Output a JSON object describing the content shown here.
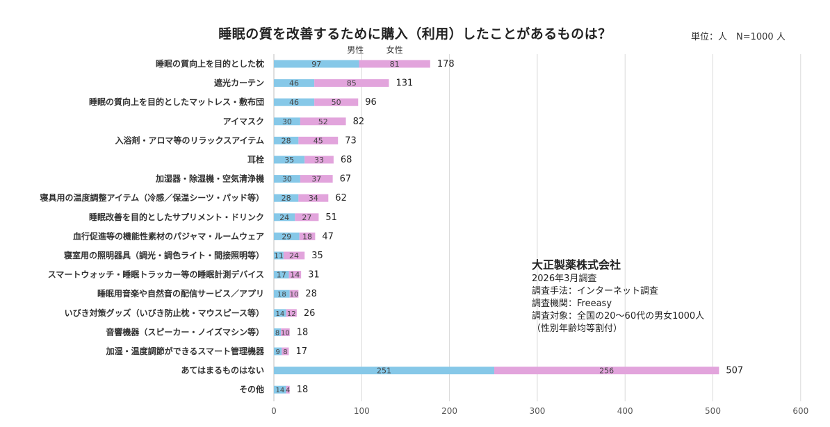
{
  "chart_data": {
    "type": "bar",
    "orientation": "horizontal",
    "stacked": true,
    "title": "睡眠の質を改善するために購入（利用）したことがあるものは？",
    "unit_label": "単位：人　N=1000 人",
    "xlim": [
      0,
      600
    ],
    "x_ticks": [
      "0",
      "100",
      "200",
      "300",
      "400",
      "500",
      "600"
    ],
    "grid": true,
    "legend": [
      "男性",
      "女性"
    ],
    "colors": {
      "male": "#86c8e8",
      "female": "#e2a4dc"
    },
    "categories": [
      "睡眠の質向上を目的とした枕",
      "遮光カーテン",
      "睡眠の質向上を目的としたマットレス・敷布団",
      "アイマスク",
      "入浴剤・アロマ等のリラックスアイテム",
      "耳栓",
      "加湿器・除湿機・空気清浄機",
      "寝具用の温度調整アイテム（冷感／保温シーツ・パッド等）",
      "睡眠改善を目的としたサプリメント・ドリンク",
      "血行促進等の機能性素材のパジャマ・ルームウェア",
      "寝室用の照明器具（調光・調色ライト・間接照明等）",
      "スマートウォッチ・睡眠トラッカー等の睡眠計測デバイス",
      "睡眠用音楽や自然音の配信サービス／アプリ",
      "いびき対策グッズ（いびき防止枕・マウスピース等）",
      "音響機器（スピーカー・ノイズマシン等）",
      "加湿・温度調節ができるスマート管理機器",
      "あてはまるものはない",
      "その他"
    ],
    "series": [
      {
        "name": "男性",
        "values": [
          97,
          46,
          46,
          30,
          28,
          35,
          30,
          28,
          24,
          29,
          11,
          17,
          18,
          14,
          8,
          9,
          251,
          14
        ]
      },
      {
        "name": "女性",
        "values": [
          81,
          85,
          50,
          52,
          45,
          33,
          37,
          34,
          27,
          18,
          24,
          14,
          10,
          12,
          10,
          8,
          256,
          4
        ]
      }
    ],
    "totals": [
      178,
      131,
      96,
      82,
      73,
      68,
      67,
      62,
      51,
      47,
      35,
      31,
      28,
      26,
      18,
      17,
      507,
      18
    ]
  },
  "note": {
    "company": "大正製薬株式会社",
    "lines": [
      "2026年3月調査",
      "調査手法：インターネット調査",
      "調査機関：Freeasy",
      "調査対象：全国の20〜60代の男女1000人",
      "（性別年齢均等割付）"
    ]
  }
}
